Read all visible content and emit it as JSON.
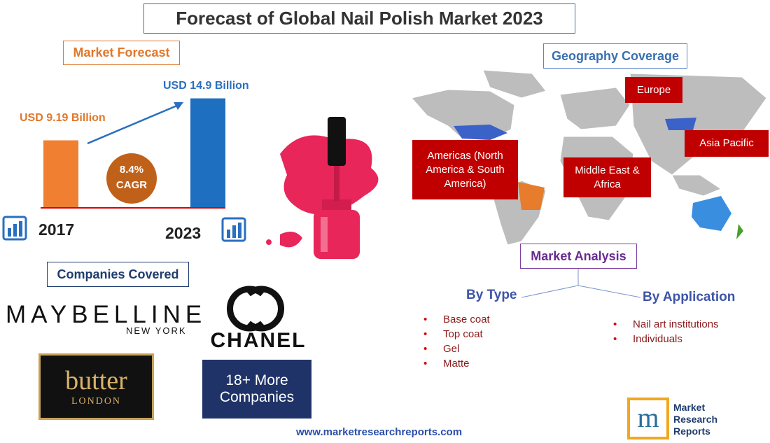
{
  "title": "Forecast of Global Nail Polish Market 2023",
  "forecast": {
    "heading": "Market Forecast",
    "years": [
      "2017",
      "2023"
    ],
    "values": [
      9.19,
      14.9
    ],
    "value_labels": [
      "USD 9.19 Billion",
      "USD 14.9 Billion"
    ],
    "cagr": "8.4%",
    "cagr_label": "CAGR"
  },
  "companies": {
    "heading": "Companies Covered",
    "maybelline": "MAYBELLINE",
    "maybelline_sub": "NEW YORK",
    "butter": "butter",
    "butter_sub": "LONDON",
    "chanel": "CHANEL",
    "more": "18+ More Companies"
  },
  "geography": {
    "heading": "Geography Coverage",
    "regions": [
      "Europe",
      "Asia Pacific",
      "Americas (North America & South America)",
      "Middle East & Africa"
    ]
  },
  "analysis": {
    "heading": "Market Analysis",
    "by_type": {
      "heading": "By Type",
      "items": [
        "Base coat",
        "Top coat",
        "Gel",
        "Matte"
      ]
    },
    "by_application": {
      "heading": "By Application",
      "items": [
        "Nail art institutions",
        "Individuals"
      ]
    }
  },
  "website": "www.marketresearchreports.com",
  "logo": [
    "Market",
    "Research",
    "Reports"
  ]
}
